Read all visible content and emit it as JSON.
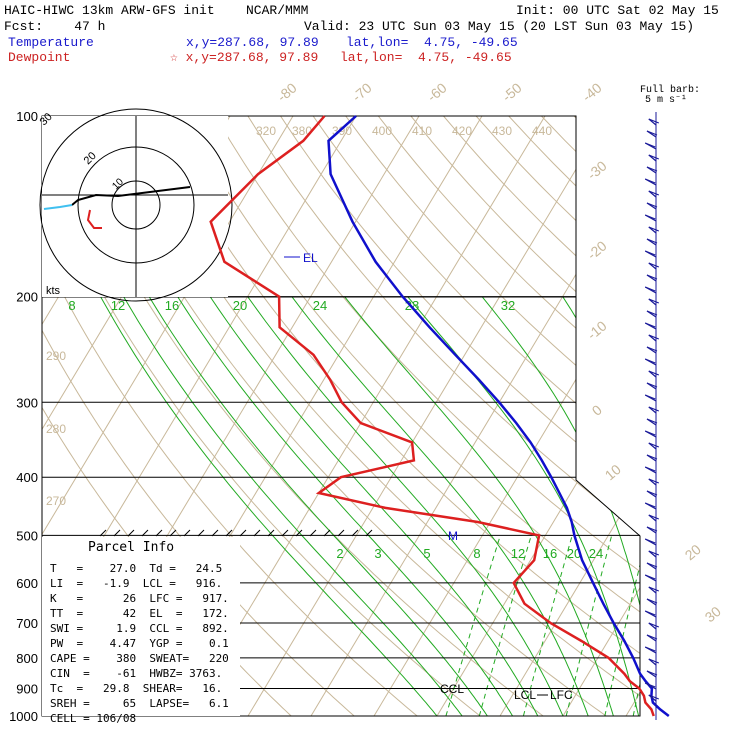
{
  "header": {
    "model": "HAIC-HIWC 13km ARW-GFS init",
    "org": "NCAR/MMM",
    "init": "Init: 00 UTC Sat 02 May 15",
    "fcst": "Fcst:    47 h",
    "valid": "Valid: 23 UTC Sun 03 May 15 (20 LST Sun 03 May 15)",
    "temp_label": "Temperature",
    "temp_xy": "x,y=287.68, 97.89",
    "temp_latlon": "lat,lon=  4.75, -49.65",
    "dew_label": "Dewpoint",
    "dew_xy": "☆ x,y=287.68, 97.89",
    "dew_latlon": "lat,lon=  4.75, -49.65"
  },
  "barb_label": {
    "line1": "Full barb:",
    "line2": "5 m s⁻¹"
  },
  "hodograph": {
    "kts": "kts",
    "r10": "10",
    "r20": "20",
    "r30": "30"
  },
  "levels": {
    "marker_el": "EL",
    "marker_m": "M",
    "marker_ccl": "CCL",
    "marker_lcl": "LCL",
    "marker_lfc": "LFC"
  },
  "parcel": {
    "title": "Parcel Info",
    "rows": [
      "T   =    27.0  Td =   24.5",
      "LI  =   -1.9  LCL =   916.",
      "K   =      26  LFC =   917.",
      "TT  =      42  EL  =   172.",
      "SWI =     1.9  CCL =   892.",
      "PW  =    4.47  YGP =    0.1",
      "CAPE =    380  SWEAT=   220",
      "CIN  =    -61  HWBZ= 3763.",
      "Tc  =   29.8  SHEAR=   16.",
      "SREH =     65  LAPSE=   6.1",
      "CELL = 106/08"
    ]
  },
  "colors": {
    "temperature": "#1010cc",
    "dewpoint": "#dd2020",
    "theta": "#c8b89a",
    "mixing_ratio": "#22aa22",
    "grid": "#000000",
    "barb": "#1a1a99"
  },
  "chart_data": {
    "type": "line",
    "title": "",
    "xlabel": "",
    "ylabel": "",
    "y_scale": "log",
    "pressure_ticks": [
      "100",
      "200",
      "300",
      "400",
      "500",
      "600",
      "700",
      "800",
      "900",
      "1000"
    ],
    "theta_labels": [
      "320",
      "330",
      "340",
      "350",
      "360",
      "370",
      "380",
      "390",
      "400",
      "410",
      "420",
      "430",
      "440",
      "260",
      "270",
      "280",
      "290",
      "300",
      "310"
    ],
    "isotherm_labels": [
      "-80",
      "-70",
      "-60",
      "-50",
      "-40",
      "-30",
      "-20",
      "-10",
      "0",
      "10",
      "20",
      "30",
      "40"
    ],
    "mixing_ratio_labels_upper": [
      "8",
      "12",
      "16",
      "20",
      "24",
      "28",
      "32"
    ],
    "mixing_ratio_labels_lower": [
      "2",
      "3",
      "5",
      "8",
      "12",
      "16",
      "20",
      "24"
    ],
    "series": [
      {
        "name": "Temperature",
        "pressure": [
          1000,
          975,
          950,
          925,
          900,
          875,
          850,
          800,
          750,
          700,
          650,
          600,
          550,
          500,
          475,
          450,
          425,
          400,
          375,
          350,
          325,
          300,
          275,
          250,
          225,
          200,
          175,
          150,
          125,
          110,
          100
        ],
        "temp_c": [
          26.8,
          24.8,
          23.0,
          22.1,
          21.5,
          19.8,
          18.2,
          15.6,
          12.6,
          9.2,
          5.7,
          2.1,
          -1.8,
          -5.4,
          -7.1,
          -9.2,
          -11.8,
          -14.6,
          -17.7,
          -21.2,
          -25.3,
          -30.0,
          -35.4,
          -41.5,
          -48.2,
          -55.4,
          -63.0,
          -70.5,
          -78.5,
          -82.0,
          -80.0
        ]
      },
      {
        "name": "Dewpoint",
        "pressure": [
          1000,
          975,
          950,
          925,
          900,
          875,
          850,
          800,
          750,
          700,
          650,
          600,
          550,
          500,
          475,
          450,
          425,
          400,
          375,
          350,
          325,
          300,
          275,
          250,
          225,
          200,
          175,
          150,
          125,
          110,
          100
        ],
        "temp_c": [
          24.4,
          23.4,
          21.8,
          20.9,
          19.5,
          17.3,
          15.7,
          11.7,
          5.8,
          -0.8,
          -6.8,
          -10.5,
          -9.4,
          -11.0,
          -22.0,
          -38.0,
          -50.0,
          -48.0,
          -38.0,
          -40.0,
          -50.0,
          -55.0,
          -59.0,
          -64.0,
          -72.0,
          -75.0,
          -87.0,
          -93.0,
          -90.0,
          -86.0,
          -85.0
        ]
      }
    ]
  }
}
